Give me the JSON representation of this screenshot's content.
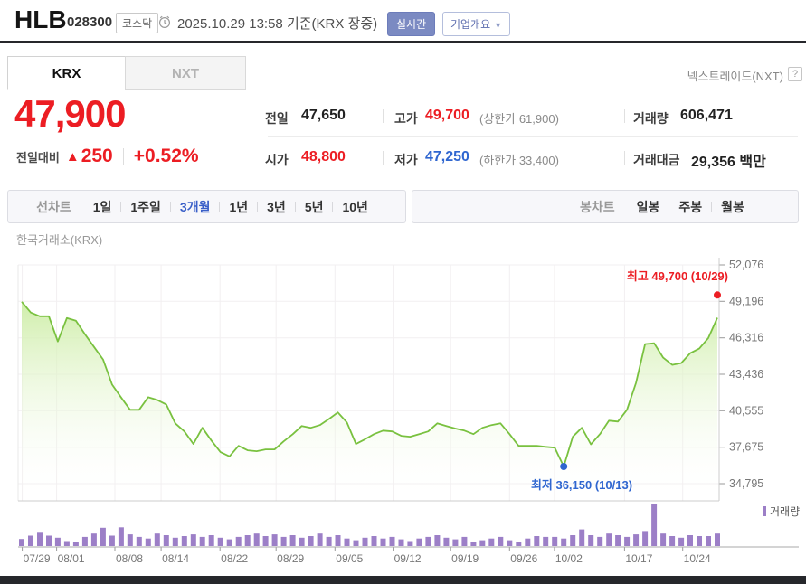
{
  "header": {
    "stock_name": "HLB",
    "stock_code": "028300",
    "market_badge": "코스닥",
    "datetime_info": "2025.10.29 13:58 기준(KRX 장중)",
    "realtime_button": "실시간",
    "company_overview_button": "기업개요",
    "dropdown_arrow": "▼"
  },
  "exchange_tabs": {
    "krx_tab": "KRX",
    "nxt_tab": "NXT",
    "nextrade_label": "넥스트레이드(NXT)",
    "help_icon": "?"
  },
  "price_summary": {
    "current_price": "47,900",
    "change_label": "전일대비",
    "change_arrow": "▲",
    "change_value": "250",
    "change_percent": "+0.52%"
  },
  "info_table": {
    "rows": [
      {
        "col1_label": "전일",
        "col1_value": "47,650",
        "col2_label": "고가",
        "col2_value": "49,700",
        "col2_paren": "(상한가 61,900)",
        "col3_label": "거래량",
        "col3_value": "606,471"
      },
      {
        "col1_label": "시가",
        "col1_value": "48,800",
        "col2_label": "저가",
        "col2_value": "47,250",
        "col2_paren": "(하한가 33,400)",
        "col3_label": "거래대금",
        "col3_value": "29,356 백만"
      }
    ]
  },
  "period_toolbar": {
    "line_chart_label": "선차트",
    "periods": [
      "1일",
      "1주일",
      "3개월",
      "1년",
      "3년",
      "5년",
      "10년"
    ],
    "selected_period": "3개월",
    "candle_chart_label": "봉차트",
    "candle_periods": [
      "일봉",
      "주봉",
      "월봉"
    ]
  },
  "chart": {
    "source_label": "한국거래소(KRX)",
    "high_annotation": "최고 49,700 (10/29)",
    "low_annotation": "최저 36,150 (10/13)",
    "volume_legend_label": "거래량"
  },
  "chart_data": {
    "type": "area",
    "title": "한국거래소(KRX)",
    "ylim": [
      34795,
      52076
    ],
    "y_ticks": [
      52076,
      49196,
      46316,
      43436,
      40555,
      37675,
      34795
    ],
    "x_ticks": [
      {
        "label": "07/29",
        "f": 0.006
      },
      {
        "label": "08/01",
        "f": 0.055
      },
      {
        "label": "08/08",
        "f": 0.138
      },
      {
        "label": "08/14",
        "f": 0.204
      },
      {
        "label": "08/22",
        "f": 0.288
      },
      {
        "label": "08/29",
        "f": 0.368
      },
      {
        "label": "09/05",
        "f": 0.452
      },
      {
        "label": "09/12",
        "f": 0.535
      },
      {
        "label": "09/19",
        "f": 0.617
      },
      {
        "label": "09/26",
        "f": 0.701
      },
      {
        "label": "10/02",
        "f": 0.765
      },
      {
        "label": "10/17",
        "f": 0.865
      },
      {
        "label": "10/24",
        "f": 0.948
      }
    ],
    "high": {
      "label": "최고",
      "value": 49700,
      "date": "10/29"
    },
    "low": {
      "label": "최저",
      "value": 36150,
      "date": "10/13"
    },
    "prices": [
      49160,
      48310,
      48020,
      48020,
      46030,
      47880,
      47670,
      46600,
      45600,
      44610,
      42620,
      41600,
      40630,
      40630,
      41620,
      41410,
      41050,
      39560,
      38920,
      37930,
      39210,
      38200,
      37290,
      36950,
      37780,
      37430,
      37360,
      37500,
      37500,
      38140,
      38700,
      39350,
      39210,
      39420,
      39900,
      40420,
      39630,
      37930,
      38300,
      38710,
      38990,
      38920,
      38570,
      38500,
      38710,
      38920,
      39560,
      39350,
      39150,
      38990,
      38710,
      39210,
      39420,
      39560,
      38710,
      37780,
      37780,
      37780,
      37700,
      37640,
      36150,
      38500,
      39210,
      37900,
      38710,
      39770,
      39700,
      40630,
      42760,
      45820,
      45890,
      44750,
      44180,
      44320,
      45100,
      45460,
      46300,
      47900
    ],
    "volumes": [
      0.17,
      0.25,
      0.32,
      0.25,
      0.2,
      0.12,
      0.1,
      0.22,
      0.3,
      0.44,
      0.25,
      0.45,
      0.28,
      0.22,
      0.18,
      0.3,
      0.26,
      0.2,
      0.24,
      0.28,
      0.22,
      0.26,
      0.2,
      0.16,
      0.22,
      0.26,
      0.3,
      0.24,
      0.28,
      0.22,
      0.26,
      0.2,
      0.24,
      0.3,
      0.22,
      0.26,
      0.18,
      0.14,
      0.2,
      0.24,
      0.18,
      0.22,
      0.16,
      0.12,
      0.18,
      0.22,
      0.26,
      0.2,
      0.16,
      0.22,
      0.1,
      0.14,
      0.18,
      0.22,
      0.14,
      0.1,
      0.18,
      0.24,
      0.22,
      0.22,
      0.18,
      0.26,
      0.4,
      0.26,
      0.22,
      0.3,
      0.26,
      0.22,
      0.28,
      0.36,
      1.0,
      0.3,
      0.24,
      0.2,
      0.26,
      0.24,
      0.24,
      0.3
    ],
    "legend": "거래량",
    "colors": {
      "up": "#ec1d23",
      "down": "#2f66d0",
      "line": "#79c13f",
      "area_top": "#cdeda6",
      "volume": "#9c7fc7",
      "grid": "#f2eff1",
      "axis": "#aaaaaa",
      "tick_label": "#777777"
    }
  }
}
